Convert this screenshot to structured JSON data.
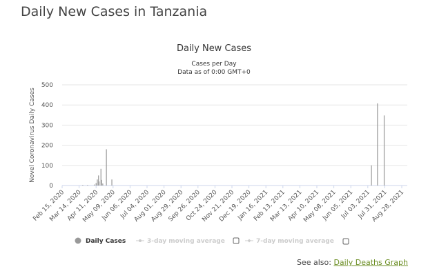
{
  "page": {
    "title": "Daily New Cases in Tanzania"
  },
  "see_also": {
    "label": "See also:",
    "link": "Daily Deaths Graph"
  },
  "chart_data": {
    "type": "bar",
    "title": "Daily New Cases",
    "subtitle": [
      "Cases per Day",
      "Data as of 0:00 GMT+0"
    ],
    "ylabel": "Novel Coronavirus Daily Cases",
    "xlabel": "",
    "ylim": [
      0,
      500
    ],
    "yticks": [
      0,
      100,
      200,
      300,
      400,
      500
    ],
    "grid": true,
    "x_start": "2020-02-15",
    "x_end": "2021-09-10",
    "xticks": [
      "Feb 15, 2020",
      "Mar 14, 2020",
      "Apr 11, 2020",
      "May 09, 2020",
      "Jun 06, 2020",
      "Jul 04, 2020",
      "Aug 01, 2020",
      "Aug 29, 2020",
      "Sep 26, 2020",
      "Oct 24, 2020",
      "Nov 21, 2020",
      "Dec 19, 2020",
      "Jan 16, 2021",
      "Feb 13, 2021",
      "Mar 13, 2021",
      "Apr 10, 2021",
      "May 08, 2021",
      "Jun 05, 2021",
      "Jul 03, 2021",
      "Jul 31, 2021",
      "Aug 28, 2021"
    ],
    "series": [
      {
        "name": "Daily Cases",
        "points": [
          [
            "2020-03-20",
            3
          ],
          [
            "2020-03-28",
            3
          ],
          [
            "2020-04-08",
            5
          ],
          [
            "2020-04-11",
            12
          ],
          [
            "2020-04-13",
            30
          ],
          [
            "2020-04-15",
            50
          ],
          [
            "2020-04-16",
            20
          ],
          [
            "2020-04-19",
            83
          ],
          [
            "2020-04-20",
            28
          ],
          [
            "2020-04-22",
            10
          ],
          [
            "2020-04-28",
            180
          ],
          [
            "2020-05-07",
            30
          ],
          [
            "2021-07-09",
            100
          ],
          [
            "2021-07-19",
            408
          ],
          [
            "2021-07-30",
            348
          ]
        ]
      }
    ],
    "legend": [
      {
        "label": "Daily Cases",
        "active": true
      },
      {
        "label": "3-day moving average",
        "active": false
      },
      {
        "label": "7-day moving average",
        "active": false
      }
    ],
    "colors": {
      "bar": "#999999",
      "grid": "#e6e6e6",
      "inactive": "#cccccc"
    }
  }
}
